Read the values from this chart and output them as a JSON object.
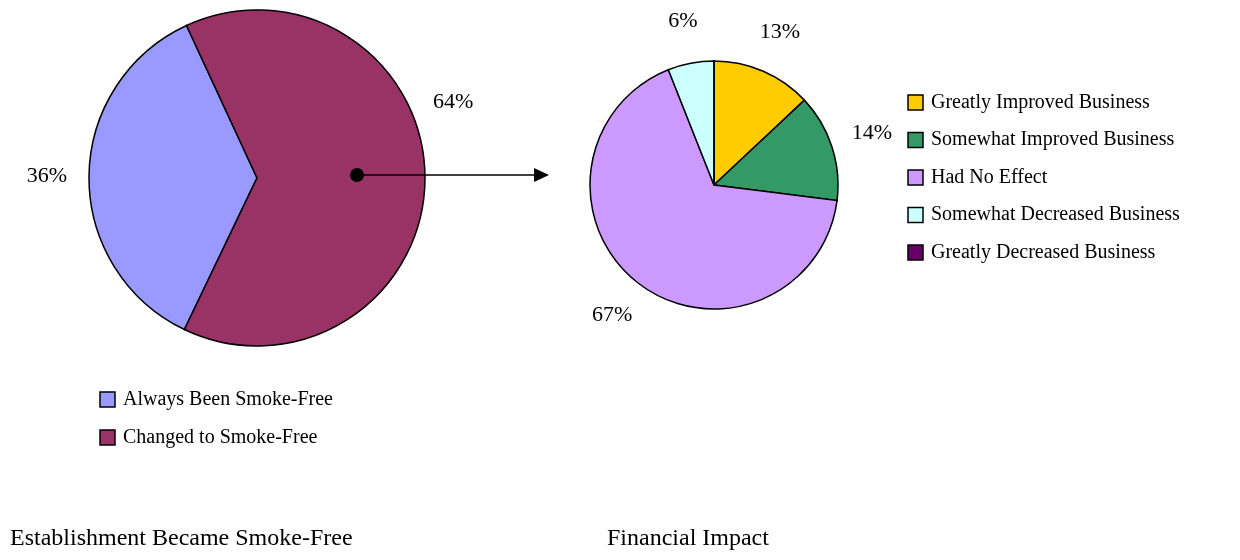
{
  "chart_data": [
    {
      "type": "pie",
      "title": "Establishment Became Smoke-Free",
      "categories": [
        "Always Been Smoke-Free",
        "Changed to Smoke-Free"
      ],
      "values": [
        36,
        64
      ],
      "colors": [
        "#9999ff",
        "#993366"
      ],
      "value_labels": [
        "36%",
        "64%"
      ],
      "legend": "bottom"
    },
    {
      "type": "pie",
      "title": "Financial Impact",
      "categories": [
        "Greatly Improved Business",
        "Somewhat Improved Business",
        "Had No Effect",
        "Somewhat Decreased Business",
        "Greatly Decreased Business"
      ],
      "values": [
        13,
        14,
        67,
        6,
        0
      ],
      "colors": [
        "#ffcc00",
        "#339966",
        "#cc99ff",
        "#ccffff",
        "#660066"
      ],
      "value_labels": [
        "13%",
        "14%",
        "67%",
        "6%",
        null
      ],
      "legend": "right"
    }
  ]
}
